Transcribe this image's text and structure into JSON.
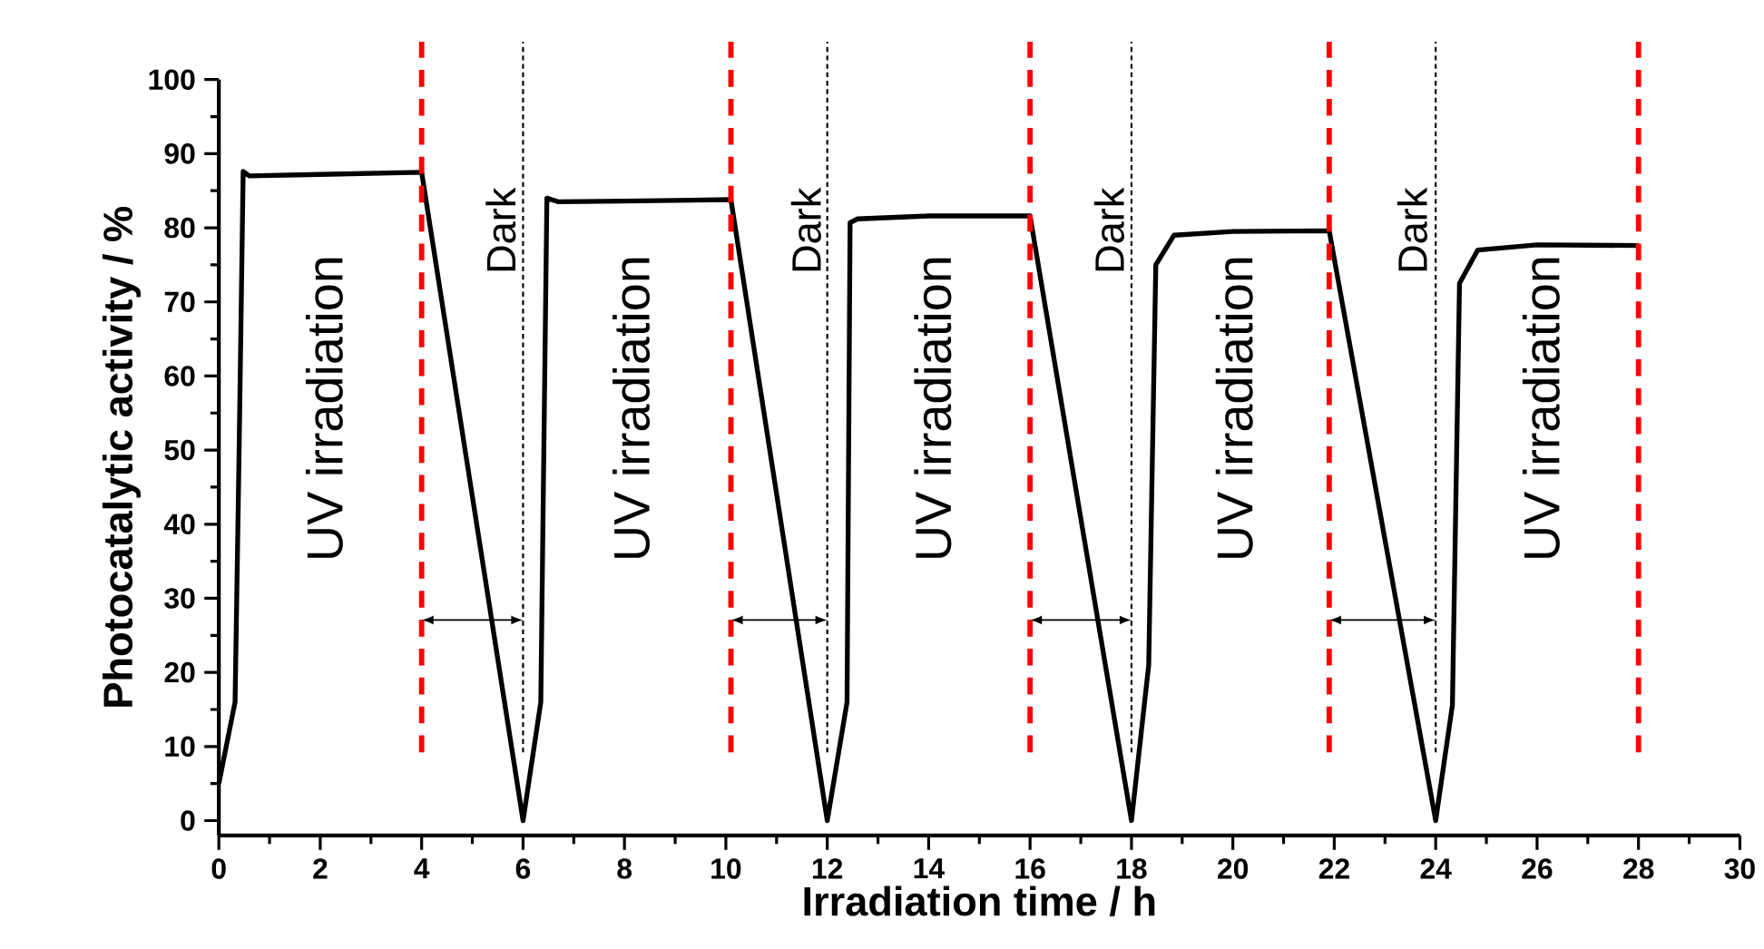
{
  "chart_data": {
    "type": "line",
    "xlabel": "Irradiation time / h",
    "ylabel": "Photocatalytic activity / %",
    "x": [
      0,
      0.32,
      0.4,
      0.48,
      0.6,
      2,
      4,
      6,
      6.35,
      6.47,
      6.7,
      8,
      10.1,
      12,
      12.39,
      12.45,
      12.6,
      14,
      16,
      18,
      18.34,
      18.48,
      18.84,
      20,
      21.9,
      24,
      24.33,
      24.47,
      24.83,
      26,
      28
    ],
    "series": [
      {
        "color": "#000000",
        "values": [
          5,
          16,
          50,
          87.6,
          87,
          87.2,
          87.5,
          0,
          16,
          84,
          83.5,
          83.6,
          83.8,
          0,
          16,
          80.7,
          81.2,
          81.6,
          81.6,
          0,
          21,
          75,
          79,
          79.5,
          79.6,
          0,
          15.6,
          72.5,
          77,
          77.7,
          77.6
        ]
      }
    ],
    "xlim": [
      0,
      30
    ],
    "xticks": [
      0,
      2,
      4,
      6,
      8,
      10,
      12,
      14,
      16,
      18,
      20,
      22,
      24,
      26,
      28,
      30
    ],
    "ylim": [
      -2,
      100
    ],
    "yticks": [
      0,
      10,
      20,
      30,
      40,
      50,
      60,
      70,
      80,
      90,
      100
    ],
    "line_style": "solid",
    "marker": "none",
    "grid": false,
    "ref_lines": [
      {
        "axis": "x",
        "value": 4,
        "color": "#ff0000",
        "line_style": "dashed"
      },
      {
        "axis": "x",
        "value": 10.1,
        "color": "#ff0000",
        "line_style": "dashed"
      },
      {
        "axis": "x",
        "value": 16,
        "color": "#ff0000",
        "line_style": "dashed"
      },
      {
        "axis": "x",
        "value": 21.9,
        "color": "#ff0000",
        "line_style": "dashed"
      },
      {
        "axis": "x",
        "value": 28,
        "color": "#ff0000",
        "line_style": "dashed"
      },
      {
        "axis": "x",
        "value": 6,
        "color": "#000000",
        "line_style": "dotted"
      },
      {
        "axis": "x",
        "value": 12,
        "color": "#000000",
        "line_style": "dotted"
      },
      {
        "axis": "x",
        "value": 18,
        "color": "#000000",
        "line_style": "dotted"
      },
      {
        "axis": "x",
        "value": 24,
        "color": "#000000",
        "line_style": "dotted"
      }
    ],
    "annotations": [
      "UV irradiation",
      "Dark",
      "UV irradiation",
      "Dark",
      "UV irradiation",
      "Dark",
      "UV irradiation",
      "Dark",
      "UV irradiation"
    ]
  }
}
